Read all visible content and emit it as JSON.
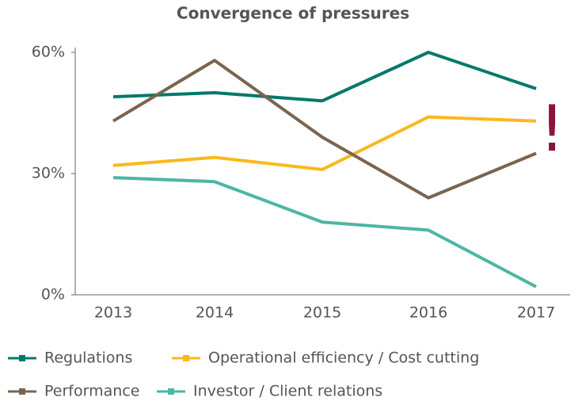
{
  "chart_data": {
    "type": "line",
    "title": "Convergence of pressures",
    "categories": [
      "2013",
      "2014",
      "2015",
      "2016",
      "2017"
    ],
    "series": [
      {
        "name": "Regulations",
        "color": "#00796b",
        "values": [
          49,
          50,
          48,
          60,
          51
        ]
      },
      {
        "name": "Operational efficiency / Cost cutting",
        "color": "#fbb81c",
        "values": [
          32,
          34,
          31,
          44,
          43
        ]
      },
      {
        "name": "Performance",
        "color": "#7a6550",
        "values": [
          43,
          58,
          39,
          24,
          35
        ]
      },
      {
        "name": "Investor / Client relations",
        "color": "#4db6a2",
        "values": [
          29,
          28,
          18,
          16,
          2
        ]
      }
    ],
    "ylim": [
      0,
      60
    ],
    "yticks": [
      {
        "value": 0,
        "label": "0%"
      },
      {
        "value": 30,
        "label": "30%"
      },
      {
        "value": 60,
        "label": "60%"
      }
    ],
    "annotation": "!",
    "annotation_color": "#8b1538",
    "grid": false
  }
}
